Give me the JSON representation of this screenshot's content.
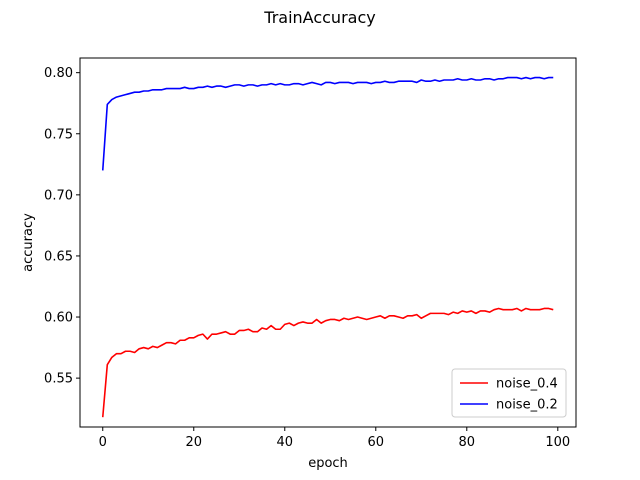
{
  "chart_data": {
    "type": "line",
    "title": "TrainAccuracy",
    "xlabel": "epoch",
    "ylabel": "accuracy",
    "xlim": [
      -5,
      104
    ],
    "ylim": [
      0.51,
      0.812
    ],
    "xticks": [
      0,
      20,
      40,
      60,
      80,
      100
    ],
    "xtick_labels": [
      "0",
      "20",
      "40",
      "60",
      "80",
      "100"
    ],
    "yticks": [
      0.55,
      0.6,
      0.65,
      0.7,
      0.75,
      0.8
    ],
    "ytick_labels": [
      "0.55",
      "0.60",
      "0.65",
      "0.70",
      "0.75",
      "0.80"
    ],
    "grid": false,
    "legend_position": "lower-right",
    "series": [
      {
        "name": "noise_0.4",
        "color": "#ff0000",
        "x": [
          0,
          1,
          2,
          3,
          4,
          5,
          6,
          7,
          8,
          9,
          10,
          11,
          12,
          13,
          14,
          15,
          16,
          17,
          18,
          19,
          20,
          21,
          22,
          23,
          24,
          25,
          26,
          27,
          28,
          29,
          30,
          31,
          32,
          33,
          34,
          35,
          36,
          37,
          38,
          39,
          40,
          41,
          42,
          43,
          44,
          45,
          46,
          47,
          48,
          49,
          50,
          51,
          52,
          53,
          54,
          55,
          56,
          57,
          58,
          59,
          60,
          61,
          62,
          63,
          64,
          65,
          66,
          67,
          68,
          69,
          70,
          71,
          72,
          73,
          74,
          75,
          76,
          77,
          78,
          79,
          80,
          81,
          82,
          83,
          84,
          85,
          86,
          87,
          88,
          89,
          90,
          91,
          92,
          93,
          94,
          95,
          96,
          97,
          98,
          99
        ],
        "y": [
          0.518,
          0.561,
          0.567,
          0.57,
          0.57,
          0.572,
          0.572,
          0.571,
          0.574,
          0.575,
          0.574,
          0.576,
          0.575,
          0.577,
          0.579,
          0.579,
          0.578,
          0.581,
          0.581,
          0.583,
          0.583,
          0.585,
          0.586,
          0.582,
          0.586,
          0.586,
          0.587,
          0.588,
          0.586,
          0.586,
          0.589,
          0.589,
          0.59,
          0.588,
          0.588,
          0.591,
          0.59,
          0.593,
          0.59,
          0.59,
          0.594,
          0.595,
          0.593,
          0.595,
          0.596,
          0.595,
          0.595,
          0.598,
          0.595,
          0.597,
          0.598,
          0.598,
          0.597,
          0.599,
          0.598,
          0.599,
          0.6,
          0.599,
          0.598,
          0.599,
          0.6,
          0.601,
          0.599,
          0.601,
          0.601,
          0.6,
          0.599,
          0.601,
          0.601,
          0.602,
          0.599,
          0.601,
          0.603,
          0.603,
          0.603,
          0.603,
          0.602,
          0.604,
          0.603,
          0.605,
          0.604,
          0.605,
          0.603,
          0.605,
          0.605,
          0.604,
          0.606,
          0.607,
          0.606,
          0.606,
          0.606,
          0.607,
          0.605,
          0.607,
          0.606,
          0.606,
          0.606,
          0.607,
          0.607,
          0.606
        ]
      },
      {
        "name": "noise_0.2",
        "color": "#0000ff",
        "x": [
          0,
          1,
          2,
          3,
          4,
          5,
          6,
          7,
          8,
          9,
          10,
          11,
          12,
          13,
          14,
          15,
          16,
          17,
          18,
          19,
          20,
          21,
          22,
          23,
          24,
          25,
          26,
          27,
          28,
          29,
          30,
          31,
          32,
          33,
          34,
          35,
          36,
          37,
          38,
          39,
          40,
          41,
          42,
          43,
          44,
          45,
          46,
          47,
          48,
          49,
          50,
          51,
          52,
          53,
          54,
          55,
          56,
          57,
          58,
          59,
          60,
          61,
          62,
          63,
          64,
          65,
          66,
          67,
          68,
          69,
          70,
          71,
          72,
          73,
          74,
          75,
          76,
          77,
          78,
          79,
          80,
          81,
          82,
          83,
          84,
          85,
          86,
          87,
          88,
          89,
          90,
          91,
          92,
          93,
          94,
          95,
          96,
          97,
          98,
          99
        ],
        "y": [
          0.72,
          0.774,
          0.778,
          0.78,
          0.781,
          0.782,
          0.783,
          0.784,
          0.784,
          0.785,
          0.785,
          0.786,
          0.786,
          0.786,
          0.787,
          0.787,
          0.787,
          0.787,
          0.788,
          0.787,
          0.787,
          0.788,
          0.788,
          0.789,
          0.788,
          0.789,
          0.789,
          0.788,
          0.789,
          0.79,
          0.79,
          0.789,
          0.79,
          0.79,
          0.789,
          0.79,
          0.79,
          0.791,
          0.79,
          0.791,
          0.79,
          0.79,
          0.791,
          0.791,
          0.79,
          0.791,
          0.792,
          0.791,
          0.79,
          0.792,
          0.792,
          0.791,
          0.792,
          0.792,
          0.792,
          0.791,
          0.792,
          0.792,
          0.792,
          0.791,
          0.792,
          0.792,
          0.793,
          0.792,
          0.792,
          0.793,
          0.793,
          0.793,
          0.793,
          0.792,
          0.794,
          0.793,
          0.793,
          0.794,
          0.793,
          0.794,
          0.794,
          0.794,
          0.795,
          0.794,
          0.794,
          0.795,
          0.794,
          0.794,
          0.795,
          0.795,
          0.794,
          0.795,
          0.795,
          0.796,
          0.796,
          0.796,
          0.795,
          0.796,
          0.795,
          0.796,
          0.796,
          0.795,
          0.796,
          0.796
        ]
      }
    ]
  }
}
